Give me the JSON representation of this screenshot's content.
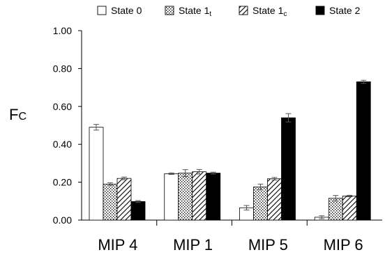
{
  "chart_data": {
    "type": "bar",
    "ylabel": "F",
    "ylabel_sub": "C",
    "categories": [
      "MIP 4",
      "MIP 1",
      "MIP 5",
      "MIP 6"
    ],
    "ylim": [
      0,
      1.0
    ],
    "yticks": [
      "0.00",
      "0.20",
      "0.40",
      "0.60",
      "0.80",
      "1.00"
    ],
    "yticks_values": [
      0,
      0.2,
      0.4,
      0.6,
      0.8,
      1.0
    ],
    "grid": false,
    "legend_position": "top",
    "error_bars": true,
    "series": [
      {
        "name": "State 0",
        "name_base": "State 0",
        "name_sub": "",
        "pattern": "white",
        "color": "#ffffff",
        "values": [
          0.49,
          0.245,
          0.065,
          0.015
        ],
        "errors": [
          0.015,
          0.004,
          0.012,
          0.008
        ]
      },
      {
        "name": "State 1t",
        "name_base": "State 1",
        "name_sub": "t",
        "pattern": "dots",
        "color": "#ffffff",
        "values": [
          0.19,
          0.248,
          0.175,
          0.115
        ],
        "errors": [
          0.007,
          0.018,
          0.015,
          0.015
        ]
      },
      {
        "name": "State 1c",
        "name_base": "State 1",
        "name_sub": "c",
        "pattern": "hatch",
        "color": "#ffffff",
        "values": [
          0.22,
          0.255,
          0.218,
          0.127
        ],
        "errors": [
          0.007,
          0.012,
          0.007,
          0.004
        ]
      },
      {
        "name": "State 2",
        "name_base": "State 2",
        "name_sub": "",
        "pattern": "black",
        "color": "#000000",
        "values": [
          0.098,
          0.248,
          0.54,
          0.73
        ],
        "errors": [
          0.005,
          0.005,
          0.022,
          0.008
        ]
      }
    ]
  }
}
